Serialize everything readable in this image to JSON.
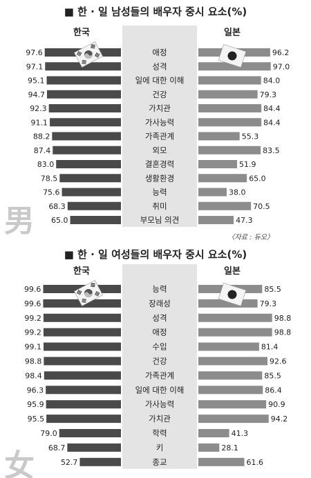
{
  "chart_data": [
    {
      "type": "bar",
      "title": "■ 한 · 일 남성들의 배우자 중시 요소(%)",
      "gender_glyph": "男",
      "source": "〈자료 : 듀오〉",
      "xlim": [
        0,
        100
      ],
      "categories": [
        "애정",
        "성격",
        "일에 대한 이해",
        "건강",
        "가치관",
        "가사능력",
        "가족관계",
        "외모",
        "결혼경력",
        "생활환경",
        "능력",
        "취미",
        "부모님 의견"
      ],
      "series": [
        {
          "name": "한국",
          "values": [
            97.6,
            97.1,
            95.1,
            94.7,
            92.3,
            91.1,
            88.2,
            87.4,
            83.0,
            78.5,
            75.6,
            68.3,
            65.0
          ]
        },
        {
          "name": "일본",
          "values": [
            96.2,
            97.0,
            84.0,
            79.3,
            84.4,
            84.4,
            55.3,
            83.5,
            51.9,
            65.0,
            38.0,
            70.5,
            47.3
          ]
        }
      ]
    },
    {
      "type": "bar",
      "title": "■ 한 · 일 여성들의 배우자 중시 요소(%)",
      "gender_glyph": "女",
      "source": "",
      "xlim": [
        0,
        100
      ],
      "categories": [
        "능력",
        "장래성",
        "성격",
        "애정",
        "수입",
        "건강",
        "가족관계",
        "일에 대한 이해",
        "가사능력",
        "가치관",
        "학력",
        "키",
        "종교"
      ],
      "series": [
        {
          "name": "한국",
          "values": [
            99.6,
            99.6,
            99.2,
            99.2,
            99.1,
            98.8,
            98.4,
            96.3,
            95.9,
            95.5,
            79.0,
            68.7,
            52.7
          ]
        },
        {
          "name": "일본",
          "values": [
            85.5,
            79.3,
            98.8,
            98.8,
            81.4,
            92.6,
            85.5,
            86.4,
            90.9,
            94.2,
            41.3,
            28.1,
            61.6
          ]
        }
      ]
    }
  ],
  "colors": {
    "korea_bar": "#4a4a4a",
    "japan_bar": "#8c8c8c",
    "label_band": "#e4e4e4",
    "glyph": "#c9c9c9",
    "text": "#222222"
  }
}
